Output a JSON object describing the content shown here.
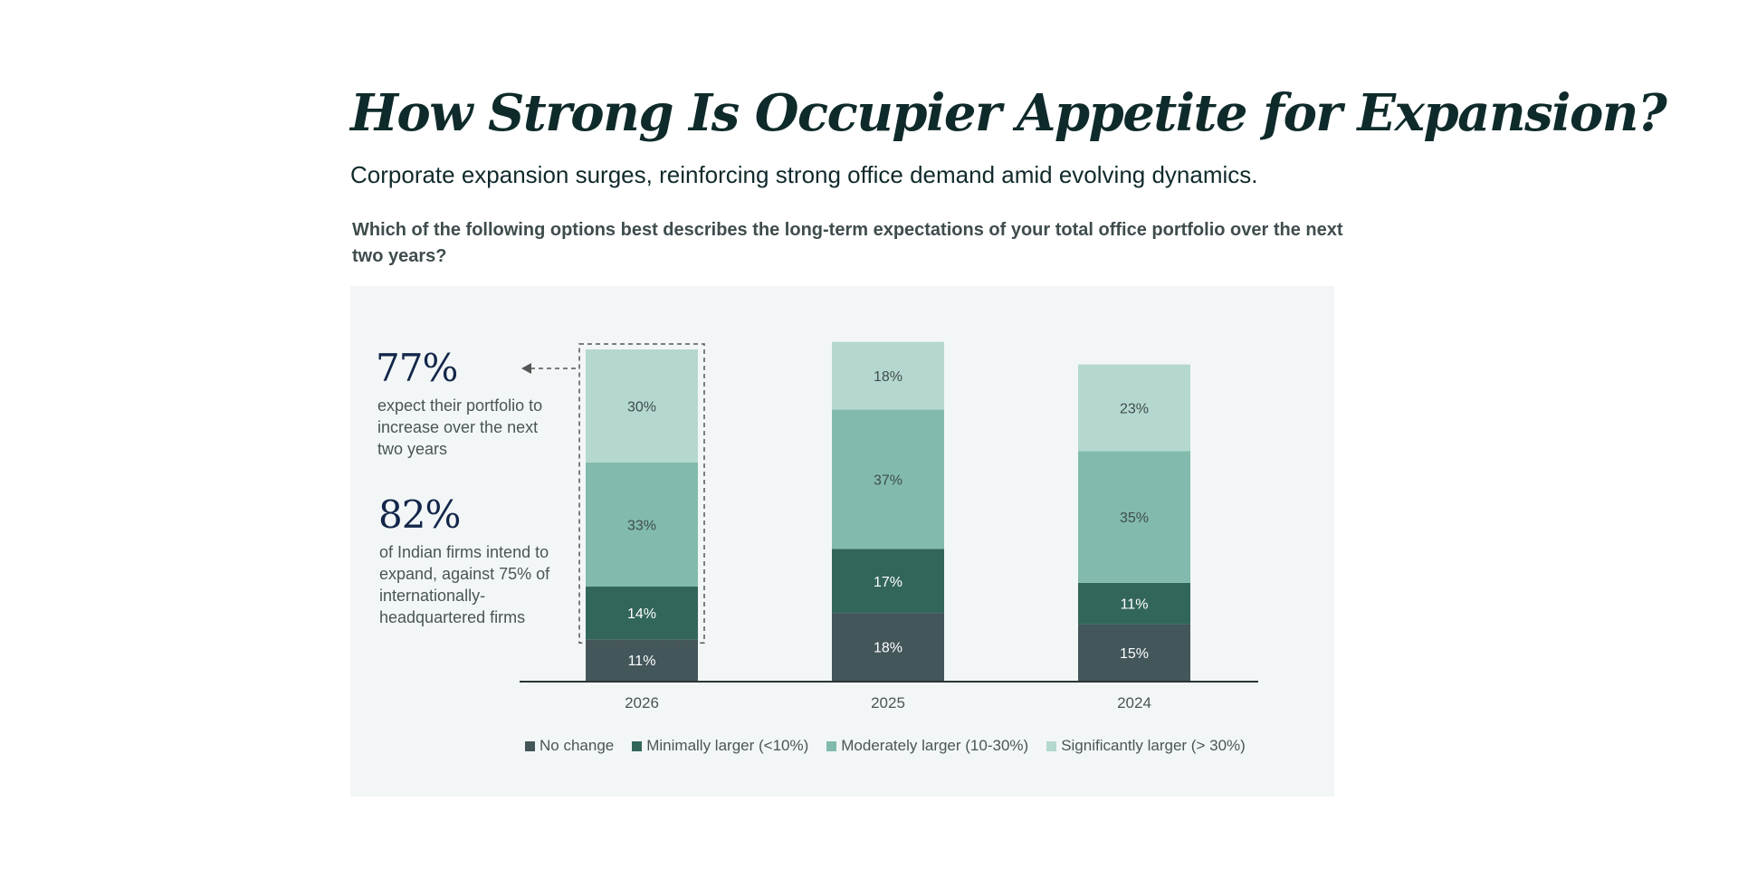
{
  "header": {
    "title": "How Strong Is Occupier Appetite for Expansion?",
    "subtitle": "Corporate expansion surges, reinforcing strong office demand amid evolving dynamics.",
    "question": "Which of the following options best describes the long-term expectations of your total office portfolio over the next two years?"
  },
  "callouts": [
    {
      "value": "77%",
      "text": "expect their portfolio to increase over the next two years"
    },
    {
      "value": "82%",
      "text": "of Indian firms intend to expand, against 75% of internationally-headquartered firms"
    }
  ],
  "chart_data": {
    "type": "bar",
    "stacked": true,
    "categories": [
      "2026",
      "2025",
      "2024"
    ],
    "series": [
      {
        "name": "No change",
        "values": [
          11,
          18,
          15
        ],
        "color": "#43565a",
        "label_color": "#ffffff"
      },
      {
        "name": "Minimally larger (<10%)",
        "values": [
          14,
          17,
          11
        ],
        "color": "#33665b",
        "label_color": "#ffffff"
      },
      {
        "name": "Moderately larger (10-30%)",
        "values": [
          33,
          37,
          35
        ],
        "color": "#82bbad",
        "label_color": "#3f4c4e"
      },
      {
        "name": "Significantly larger (> 30%)",
        "values": [
          30,
          18,
          23
        ],
        "color": "#b4d8cf",
        "label_color": "#3f4c4e"
      }
    ],
    "value_suffix": "%",
    "highlighted_category": "2026",
    "legend_position": "bottom",
    "grid": false
  }
}
